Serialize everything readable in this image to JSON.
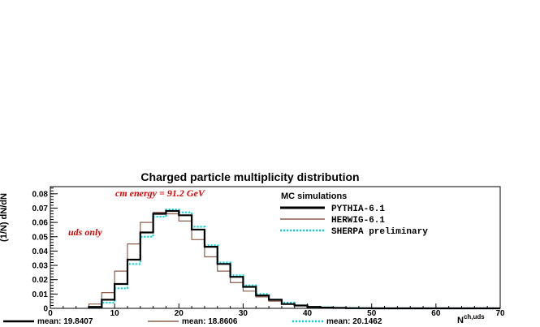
{
  "chart_data": {
    "type": "line",
    "title": "Charged particle multiplicity distribution",
    "xlabel": "N",
    "xlabel_sup": "ch,uds",
    "ylabel": "(1/N) dN/dN",
    "xlim": [
      0,
      70
    ],
    "ylim": [
      0,
      0.085
    ],
    "x_ticks": [
      "0",
      "10",
      "20",
      "30",
      "40",
      "50",
      "60",
      "70"
    ],
    "y_ticks": [
      "0",
      "0.01",
      "0.02",
      "0.03",
      "0.04",
      "0.05",
      "0.06",
      "0.07",
      "0.08"
    ],
    "annotations": [
      "cm energy = 91.2 GeV",
      "uds only"
    ],
    "legend_title": "MC simulations",
    "legend_position": "top-right",
    "bin_edges": [
      6,
      8,
      10,
      12,
      14,
      16,
      18,
      20,
      22,
      24,
      26,
      28,
      30,
      32,
      34,
      36,
      38,
      40,
      42,
      44,
      46,
      48,
      50,
      52,
      54,
      56,
      58,
      60,
      62,
      64,
      66,
      68,
      70
    ],
    "series": [
      {
        "name": "PYTHIA-6.1",
        "color": "#000000",
        "style": "solid-thick",
        "values": [
          0.001,
          0.006,
          0.017,
          0.034,
          0.053,
          0.066,
          0.068,
          0.065,
          0.055,
          0.043,
          0.031,
          0.022,
          0.015,
          0.009,
          0.006,
          0.003,
          0.002,
          0.001,
          0.0005,
          0.0003,
          0.0001,
          0.0001,
          0,
          0,
          0,
          0,
          0,
          0,
          0,
          0,
          0,
          0
        ]
      },
      {
        "name": "HERWIG-6.1",
        "color": "#8b5e4b",
        "style": "solid-thin",
        "values": [
          0.003,
          0.011,
          0.026,
          0.045,
          0.06,
          0.067,
          0.066,
          0.061,
          0.048,
          0.036,
          0.026,
          0.018,
          0.012,
          0.008,
          0.005,
          0.003,
          0.002,
          0.001,
          0.0005,
          0.0002,
          0.0001,
          0,
          0,
          0,
          0,
          0,
          0,
          0,
          0,
          0,
          0,
          0
        ]
      },
      {
        "name": "SHERPA preliminary",
        "color": "#00d8d8",
        "style": "dotted-thick",
        "values": [
          0.0005,
          0.004,
          0.014,
          0.031,
          0.05,
          0.064,
          0.069,
          0.067,
          0.057,
          0.044,
          0.032,
          0.023,
          0.016,
          0.01,
          0.006,
          0.004,
          0.002,
          0.001,
          0.0007,
          0.0004,
          0.0002,
          0.0001,
          0,
          0,
          0,
          0,
          0,
          0,
          0,
          0,
          0,
          0
        ]
      }
    ],
    "means": [
      {
        "label": "mean: 19.8407",
        "color": "#000000"
      },
      {
        "label": "mean: 18.8606",
        "color": "#8b5e4b"
      },
      {
        "label": "mean: 20.1462",
        "color": "#00d8d8"
      }
    ]
  }
}
